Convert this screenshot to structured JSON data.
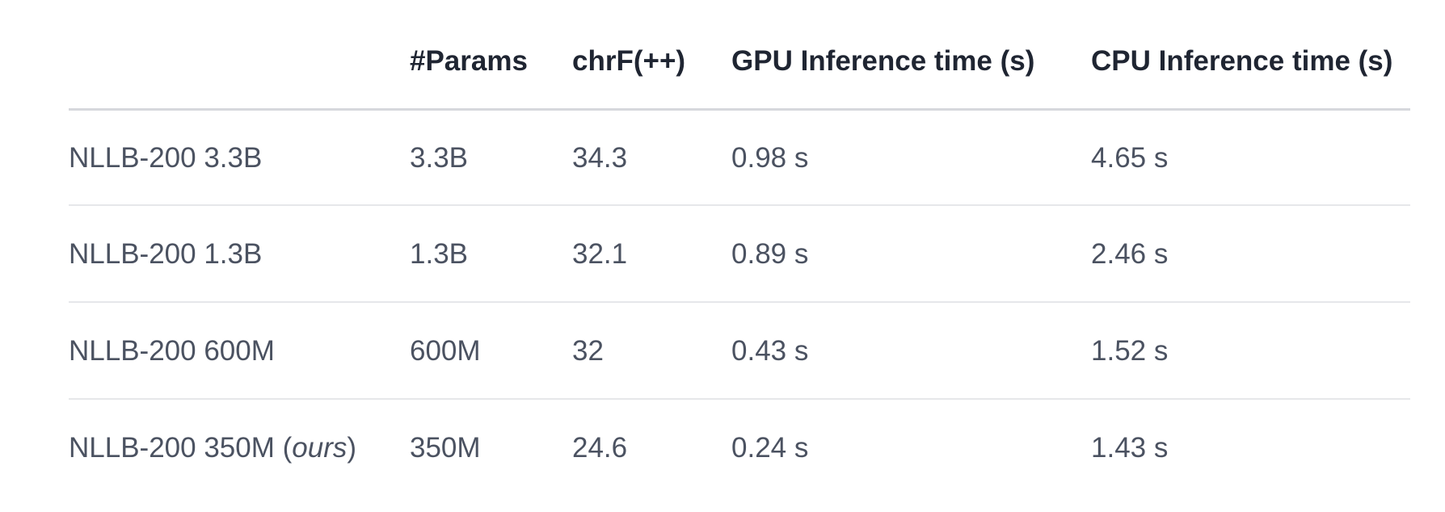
{
  "table": {
    "header": [
      "#Params",
      "chrF(++)",
      "GPU Inference time (s)",
      "CPU Inference time (s)"
    ],
    "rows": [
      [
        "NLLB-200 3.3B",
        "3.3B",
        "34.3",
        "0.98 s",
        "4.65 s"
      ],
      [
        "NLLB-200 1.3B",
        "1.3B",
        "32.1",
        "0.89 s",
        "2.46 s"
      ],
      [
        "NLLB-200 600M",
        "600M",
        "32",
        "0.43 s",
        "1.52 s"
      ],
      [
        {
          "text": "NLLB-200 350M (",
          "em": "ours",
          "tail": ")"
        },
        "350M",
        "24.6",
        "0.24 s",
        "1.43 s"
      ]
    ]
  }
}
